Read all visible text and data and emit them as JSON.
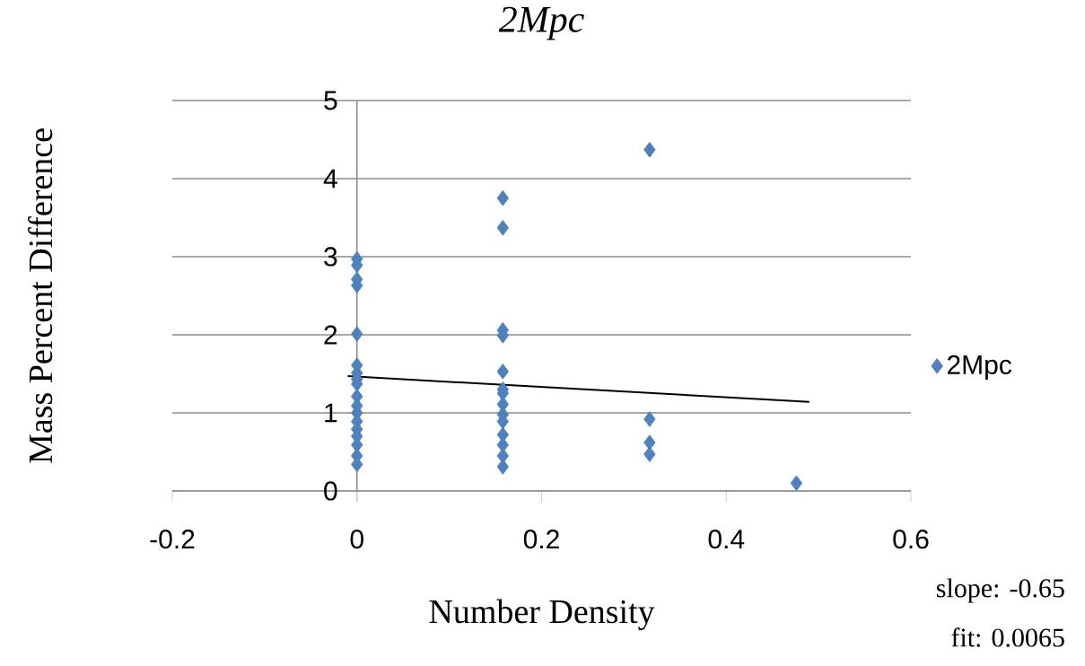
{
  "chart_data": {
    "type": "scatter",
    "title": "*2Mpc*",
    "xlabel": "Number Density",
    "ylabel": "Mass Percent Difference",
    "xlim": [
      -0.2,
      0.6
    ],
    "ylim": [
      0,
      5
    ],
    "xticks": [
      -0.2,
      0,
      0.2,
      0.4,
      0.6
    ],
    "yticks": [
      0,
      1,
      2,
      3,
      4,
      5
    ],
    "grid": "y",
    "legend": "right",
    "series": [
      {
        "name": "2Mpc",
        "color": "#4f81bd",
        "marker": "diamond",
        "x": [
          0,
          0,
          0,
          0,
          0,
          0,
          0,
          0,
          0,
          0,
          0,
          0,
          0,
          0,
          0,
          0,
          0,
          0,
          0.158,
          0.158,
          0.158,
          0.158,
          0.158,
          0.158,
          0.158,
          0.158,
          0.158,
          0.158,
          0.158,
          0.158,
          0.158,
          0.158,
          0.317,
          0.317,
          0.317,
          0.317,
          0.476
        ],
        "values": [
          2.97,
          2.89,
          2.71,
          2.63,
          2.01,
          1.61,
          1.51,
          1.43,
          1.37,
          1.21,
          1.09,
          1.0,
          0.89,
          0.79,
          0.7,
          0.59,
          0.45,
          0.34,
          3.75,
          3.37,
          2.06,
          1.99,
          1.53,
          1.3,
          1.25,
          1.11,
          0.98,
          0.89,
          0.72,
          0.59,
          0.45,
          0.31,
          4.37,
          0.92,
          0.62,
          0.47,
          0.1
        ]
      },
      {
        "type": "line",
        "color": "#000000",
        "marker": "none",
        "x": [
          -0.01,
          0.49
        ],
        "values": [
          1.47,
          1.14
        ]
      }
    ],
    "annotations": [
      "slope: -0.65",
      "fit: 0.0065"
    ]
  }
}
